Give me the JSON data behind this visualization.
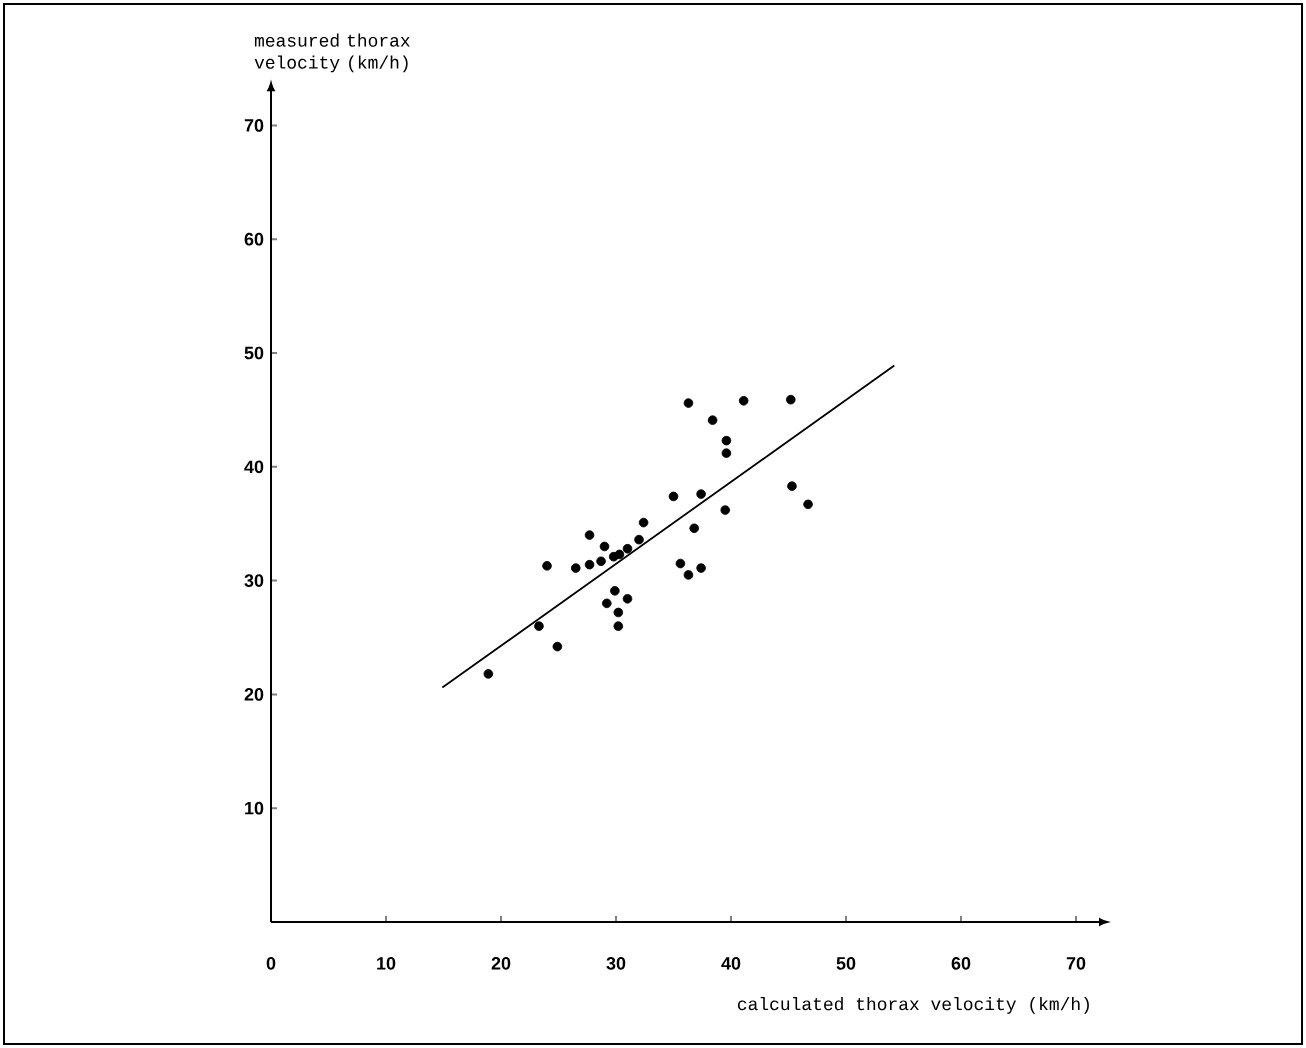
{
  "chart_data": {
    "type": "scatter",
    "xlabel": "calculated thorax velocity (km/h)",
    "ylabel": "measured thorax velocity (km/h)",
    "xlim": [
      0,
      72
    ],
    "ylim": [
      0,
      73
    ],
    "xticks": [
      0,
      10,
      20,
      30,
      40,
      50,
      60,
      70
    ],
    "yticks": [
      10,
      20,
      30,
      40,
      50,
      60,
      70
    ],
    "grid": false,
    "series": [
      {
        "color": "#000000",
        "marker": "circle",
        "x": [
          18.9,
          23.3,
          24.9,
          24.0,
          26.5,
          27.7,
          27.7,
          28.7,
          29.0,
          29.8,
          30.3,
          31.0,
          32.0,
          32.4,
          29.9,
          29.2,
          31.0,
          30.2,
          30.2,
          35.0,
          35.6,
          36.3,
          37.4,
          36.8,
          37.4,
          36.3,
          38.4,
          39.6,
          39.6,
          39.5,
          41.1,
          45.2,
          45.3,
          46.7
        ],
        "values": [
          21.8,
          26.0,
          24.2,
          31.3,
          31.1,
          34.0,
          31.4,
          31.7,
          33.0,
          32.1,
          32.3,
          32.8,
          33.6,
          35.1,
          29.1,
          28.0,
          28.4,
          27.2,
          26.0,
          37.4,
          31.5,
          30.5,
          31.1,
          34.6,
          37.6,
          45.6,
          44.1,
          42.3,
          41.2,
          36.2,
          45.8,
          45.9,
          38.3,
          36.7
        ]
      },
      {
        "type": "line",
        "color": "#000000",
        "marker": "none",
        "line_style": "solid",
        "x": [
          14.9,
          54.2
        ],
        "values": [
          20.6,
          48.9
        ]
      }
    ]
  }
}
